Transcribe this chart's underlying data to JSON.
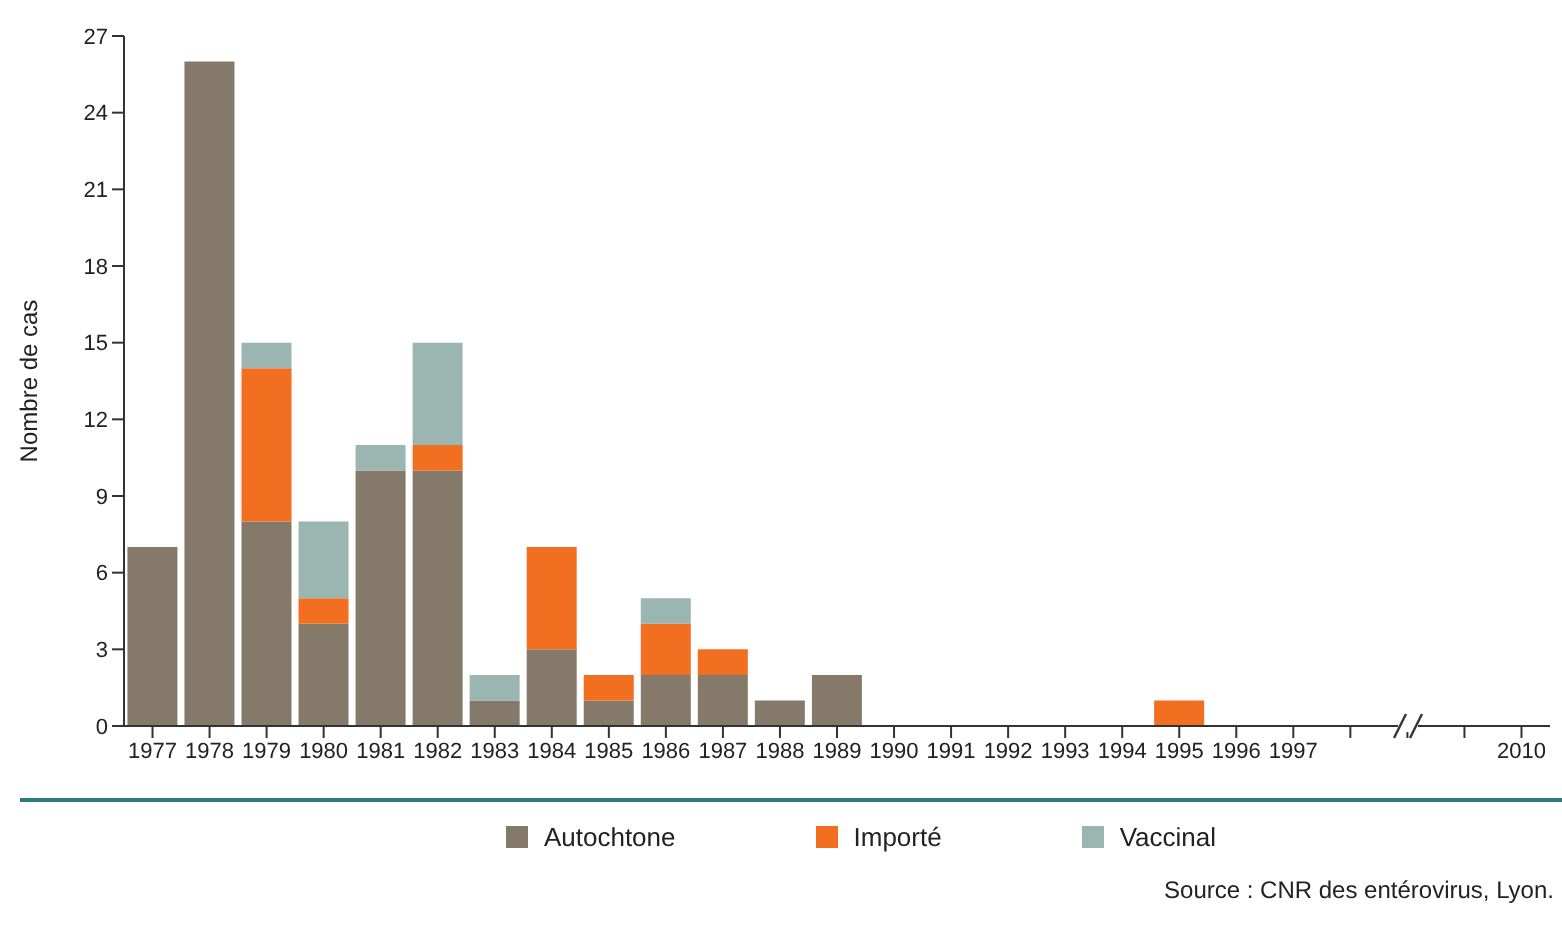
{
  "chart_data": {
    "type": "bar",
    "stacked": true,
    "ylabel": "Nombre de cas",
    "categories": [
      "1977",
      "1978",
      "1979",
      "1980",
      "1981",
      "1982",
      "1983",
      "1984",
      "1985",
      "1986",
      "1987",
      "1988",
      "1989",
      "1990",
      "1991",
      "1992",
      "1993",
      "1994",
      "1995",
      "1996",
      "1997",
      null,
      null,
      null,
      "2010"
    ],
    "series": [
      {
        "name": "Autochtone",
        "color": "#857a6a",
        "values": [
          7,
          26,
          8,
          4,
          10,
          10,
          1,
          3,
          1,
          2,
          2,
          1,
          2,
          0,
          0,
          0,
          0,
          0,
          0,
          0,
          0,
          null,
          null,
          null,
          0
        ]
      },
      {
        "name": "Importé",
        "color": "#f26f21",
        "values": [
          0,
          0,
          6,
          1,
          0,
          1,
          0,
          4,
          1,
          2,
          1,
          0,
          0,
          0,
          0,
          0,
          0,
          0,
          1,
          0,
          0,
          null,
          null,
          null,
          0
        ]
      },
      {
        "name": "Vaccinal",
        "color": "#9bb5b0",
        "values": [
          0,
          0,
          1,
          3,
          1,
          4,
          1,
          0,
          0,
          1,
          0,
          0,
          0,
          0,
          0,
          0,
          0,
          0,
          0,
          0,
          0,
          null,
          null,
          null,
          0
        ]
      }
    ],
    "ylim": [
      0,
      27
    ],
    "yticks": [
      0,
      3,
      6,
      9,
      12,
      15,
      18,
      21,
      24,
      27
    ],
    "grid": false,
    "legend": "bottom",
    "annotations": [
      "Source : CNR des entérovirus, Lyon."
    ]
  }
}
